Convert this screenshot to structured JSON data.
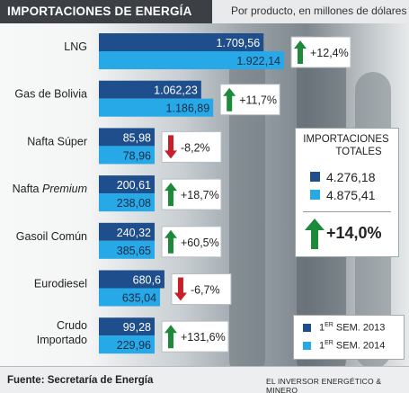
{
  "chart_data": {
    "type": "bar",
    "title": "IMPORTACIONES DE ENERGÍA",
    "subtitle": "Por producto, en millones de dólares",
    "categories": [
      "LNG",
      "Gas de Bolivia",
      "Nafta Súper",
      "Nafta Premium",
      "Gasoil Común",
      "Eurodiesel",
      "Crudo Importado"
    ],
    "series": [
      {
        "name": "1ER SEM. 2013",
        "values": [
          1709.56,
          1062.23,
          85.98,
          200.61,
          240.32,
          680.6,
          99.28
        ],
        "labels": [
          "1.709,56",
          "1.062,23",
          "85,98",
          "200,61",
          "240,32",
          "680,6",
          "99,28"
        ]
      },
      {
        "name": "1ER SEM. 2014",
        "values": [
          1922.14,
          1186.89,
          78.96,
          238.08,
          385.65,
          635.04,
          229.96
        ],
        "labels": [
          "1.922,14",
          "1.186,89",
          "78,96",
          "238,08",
          "385,65",
          "635,04",
          "229,96"
        ]
      }
    ],
    "changes": [
      {
        "text": "+12,4%",
        "dir": "up"
      },
      {
        "text": "+11,7%",
        "dir": "up"
      },
      {
        "text": "-8,2%",
        "dir": "down"
      },
      {
        "text": "+18,7%",
        "dir": "up"
      },
      {
        "text": "+60,5%",
        "dir": "up"
      },
      {
        "text": "-6,7%",
        "dir": "down"
      },
      {
        "text": "+131,6%",
        "dir": "up"
      }
    ],
    "totals": {
      "title_line1": "IMPORTACIONES",
      "title_line2": "TOTALES",
      "values": [
        "4.276,18",
        "4.875,41"
      ],
      "change": "+14,0%"
    },
    "legend": [
      {
        "pre": "1",
        "sup": "ER",
        "post": " SEM. 2013"
      },
      {
        "pre": "1",
        "sup": "ER",
        "post": " SEM. 2014"
      }
    ],
    "source": "Fuente: Secretaría de Energía",
    "credit": "EL INVERSOR ENERGÉTICO & MINERO",
    "colors": {
      "series_2013": "#1f4e8c",
      "series_2014": "#26a9e6",
      "up": "#1d8a3b",
      "down": "#c8202a"
    }
  }
}
